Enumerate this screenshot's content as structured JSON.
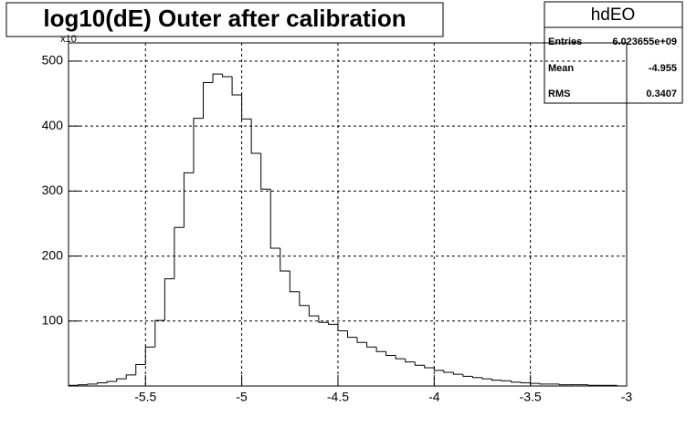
{
  "chart_data": {
    "type": "histogram",
    "title": "log10(dE) Outer after calibration",
    "y_multiplier": "x10",
    "stats": {
      "name": "hdEO",
      "labels": [
        "Entries",
        "Mean",
        "RMS"
      ],
      "values": [
        "6.023655e+09",
        "-4.955",
        "0.3407"
      ]
    },
    "bins": [
      -5.9,
      -5.85,
      -5.8,
      -5.75,
      -5.7,
      -5.65,
      -5.6,
      -5.55,
      -5.5,
      -5.45,
      -5.4,
      -5.35,
      -5.3,
      -5.25,
      -5.2,
      -5.15,
      -5.1,
      -5.05,
      -5,
      -4.95,
      -4.9,
      -4.85,
      -4.8,
      -4.75,
      -4.7,
      -4.65,
      -4.6,
      -4.55,
      -4.5,
      -4.45,
      -4.4,
      -4.35,
      -4.3,
      -4.25,
      -4.2,
      -4.15,
      -4.1,
      -4.05,
      -4,
      -3.95,
      -3.9,
      -3.85,
      -3.8,
      -3.75,
      -3.7,
      -3.65,
      -3.6,
      -3.55,
      -3.5,
      -3.45,
      -3.4,
      -3.35,
      -3.3,
      -3.25,
      -3.2,
      -3.15,
      -3.1,
      -3.05,
      -3
    ],
    "values": [
      1,
      2,
      3,
      5,
      7,
      11,
      17,
      33,
      60,
      101,
      165,
      244,
      328,
      412,
      467,
      480,
      476,
      448,
      411,
      358,
      303,
      212,
      177,
      145,
      124,
      108,
      98,
      95,
      85,
      75,
      67,
      60,
      53,
      47,
      42,
      37,
      32,
      28,
      24,
      21,
      18,
      15,
      13,
      11,
      9,
      8,
      6,
      5,
      4,
      3,
      3,
      2,
      2,
      2,
      1,
      1,
      1,
      0
    ],
    "color": "#000000",
    "xlim": [
      -5.9,
      -3
    ],
    "xticks": [
      -5.5,
      -5,
      -4.5,
      -4,
      -3.5,
      -3
    ],
    "ylim": [
      0,
      528
    ],
    "yticks": [
      100,
      200,
      300,
      400,
      500
    ],
    "grid": true
  }
}
